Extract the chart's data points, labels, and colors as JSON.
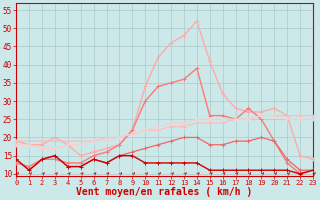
{
  "bg_color": "#cce8e8",
  "grid_color": "#aacccc",
  "xlabel": "Vent moyen/en rafales ( km/h )",
  "ylabel_ticks": [
    10,
    15,
    20,
    25,
    30,
    35,
    40,
    45,
    50,
    55
  ],
  "xticks": [
    0,
    1,
    2,
    3,
    4,
    5,
    6,
    7,
    8,
    9,
    10,
    11,
    12,
    13,
    14,
    15,
    16,
    17,
    18,
    19,
    20,
    21,
    22,
    23
  ],
  "ylim": [
    9.5,
    57
  ],
  "xlim": [
    0,
    23
  ],
  "series": [
    {
      "color": "#ffaaaa",
      "lw": 1.0,
      "data": [
        19,
        18,
        18,
        20,
        18,
        15,
        16,
        17,
        18,
        22,
        34,
        42,
        46,
        48,
        52,
        41,
        32,
        28,
        27,
        27,
        28,
        26,
        15,
        14
      ]
    },
    {
      "color": "#ff7777",
      "lw": 1.0,
      "data": [
        13,
        12,
        14,
        14,
        13,
        13,
        15,
        16,
        18,
        22,
        30,
        34,
        35,
        36,
        39,
        26,
        26,
        25,
        28,
        25,
        19,
        13,
        10,
        11
      ]
    },
    {
      "color": "#ffbbbb",
      "lw": 0.8,
      "data": [
        19,
        19,
        19,
        19,
        19,
        19,
        19,
        20,
        20,
        21,
        22,
        22,
        23,
        23,
        24,
        24,
        24,
        25,
        25,
        26,
        26,
        26,
        26,
        26
      ]
    },
    {
      "color": "#ffcccc",
      "lw": 0.8,
      "data": [
        18,
        18,
        17,
        17,
        18,
        18,
        19,
        19,
        20,
        21,
        22,
        23,
        24,
        24,
        25,
        25,
        25,
        25,
        25,
        26,
        26,
        25,
        25,
        25
      ]
    },
    {
      "color": "#ee6666",
      "lw": 0.9,
      "data": [
        14,
        11,
        14,
        15,
        12,
        12,
        14,
        13,
        15,
        16,
        17,
        18,
        19,
        20,
        20,
        18,
        18,
        19,
        19,
        20,
        19,
        14,
        11,
        11
      ]
    },
    {
      "color": "#cc0000",
      "lw": 1.0,
      "data": [
        14,
        11,
        14,
        15,
        12,
        12,
        14,
        13,
        15,
        15,
        13,
        13,
        13,
        13,
        13,
        11,
        11,
        11,
        11,
        11,
        11,
        11,
        10,
        11
      ]
    }
  ],
  "arrow_color": "#cc0000",
  "axis_fontsize": 7,
  "tick_fontsize": 5.5
}
